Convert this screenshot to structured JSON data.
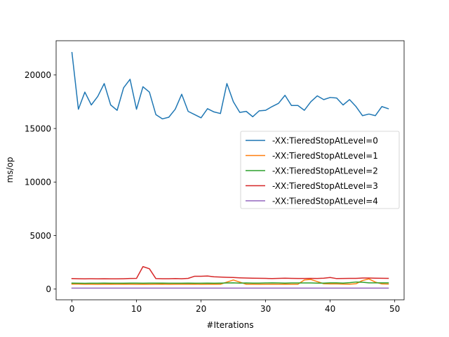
{
  "chart_data": {
    "type": "line",
    "title": "",
    "xlabel": "#Iterations",
    "ylabel": "ms/op",
    "xlim": [
      -2.45,
      51.45
    ],
    "ylim": [
      -1000,
      23200
    ],
    "xticks": [
      0,
      10,
      20,
      30,
      40,
      50
    ],
    "yticks": [
      0,
      5000,
      10000,
      15000,
      20000
    ],
    "xtick_labels": [
      "0",
      "10",
      "20",
      "30",
      "40",
      "50"
    ],
    "ytick_labels": [
      "0",
      "5000",
      "10000",
      "15000",
      "20000"
    ],
    "grid": false,
    "legend_position": "center-right",
    "x": [
      0,
      1,
      2,
      3,
      4,
      5,
      6,
      7,
      8,
      9,
      10,
      11,
      12,
      13,
      14,
      15,
      16,
      17,
      18,
      19,
      20,
      21,
      22,
      23,
      24,
      25,
      26,
      27,
      28,
      29,
      30,
      31,
      32,
      33,
      34,
      35,
      36,
      37,
      38,
      39,
      40,
      41,
      42,
      43,
      44,
      45,
      46,
      47,
      48,
      49
    ],
    "series": [
      {
        "name": "-XX:TieredStopAtLevel=0",
        "color": "#1f77b4",
        "values": [
          22100,
          16800,
          18400,
          17200,
          18000,
          19200,
          17200,
          16700,
          18800,
          19600,
          16800,
          18900,
          18400,
          16300,
          15900,
          16050,
          16800,
          18200,
          16600,
          16300,
          16000,
          16850,
          16550,
          16400,
          19200,
          17500,
          16500,
          16600,
          16100,
          16650,
          16700,
          17050,
          17350,
          18100,
          17150,
          17150,
          16700,
          17500,
          18050,
          17700,
          17900,
          17850,
          17200,
          17700,
          17050,
          16200,
          16350,
          16200,
          17050,
          16850
        ]
      },
      {
        "name": "-XX:TieredStopAtLevel=1",
        "color": "#ff7f0e",
        "values": [
          470,
          470,
          450,
          450,
          440,
          450,
          460,
          450,
          460,
          450,
          440,
          450,
          440,
          450,
          460,
          440,
          450,
          450,
          450,
          460,
          440,
          450,
          460,
          450,
          650,
          850,
          650,
          450,
          450,
          440,
          450,
          450,
          450,
          460,
          450,
          450,
          850,
          900,
          700,
          500,
          480,
          480,
          470,
          460,
          500,
          800,
          950,
          650,
          480,
          470
        ]
      },
      {
        "name": "-XX:TieredStopAtLevel=2",
        "color": "#2ca02c",
        "values": [
          560,
          550,
          540,
          550,
          550,
          560,
          550,
          550,
          550,
          560,
          560,
          550,
          560,
          560,
          560,
          550,
          550,
          550,
          560,
          550,
          550,
          560,
          550,
          560,
          570,
          580,
          560,
          570,
          560,
          560,
          570,
          580,
          570,
          560,
          570,
          570,
          570,
          570,
          560,
          560,
          580,
          580,
          560,
          600,
          660,
          640,
          580,
          580,
          580,
          580
        ]
      },
      {
        "name": "-XX:TieredStopAtLevel=3",
        "color": "#d62728",
        "values": [
          980,
          970,
          960,
          970,
          960,
          970,
          960,
          960,
          970,
          990,
          1000,
          2100,
          1900,
          980,
          970,
          970,
          980,
          970,
          1000,
          1200,
          1200,
          1220,
          1150,
          1120,
          1100,
          1080,
          1050,
          1030,
          1020,
          1010,
          1000,
          980,
          1000,
          1020,
          1000,
          990,
          990,
          1000,
          990,
          1020,
          1080,
          980,
          990,
          1000,
          1000,
          1030,
          1030,
          1020,
          1010,
          1000
        ]
      },
      {
        "name": "-XX:TieredStopAtLevel=4",
        "color": "#9467bd",
        "values": [
          90,
          90,
          90,
          90,
          90,
          90,
          90,
          90,
          90,
          90,
          90,
          90,
          90,
          90,
          90,
          90,
          90,
          90,
          90,
          90,
          90,
          90,
          90,
          90,
          90,
          90,
          90,
          90,
          90,
          90,
          90,
          90,
          90,
          90,
          90,
          90,
          90,
          90,
          90,
          90,
          90,
          90,
          90,
          90,
          90,
          90,
          90,
          90,
          90,
          90
        ]
      }
    ]
  }
}
